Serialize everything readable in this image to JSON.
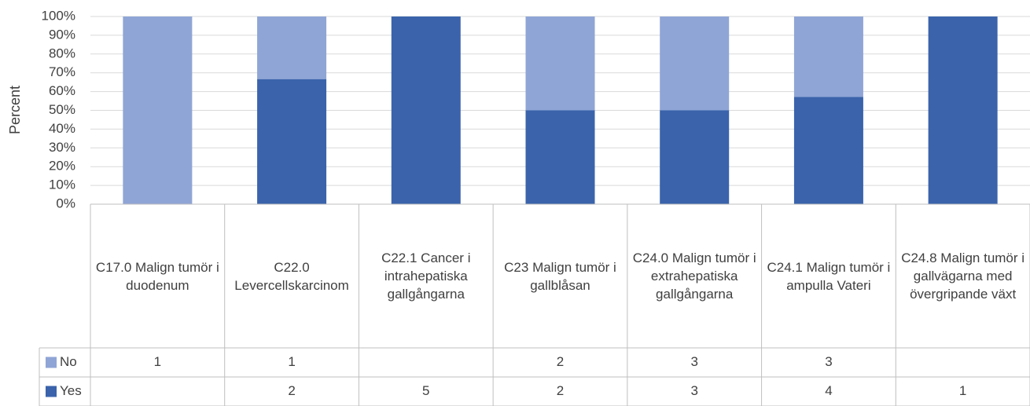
{
  "chart_data": {
    "type": "bar",
    "stacking": "percent",
    "y_label": "Percent",
    "categories": [
      "C17.0 Malign tumör i duodenum",
      "C22.0 Levercellskarcinom",
      "C22.1 Cancer i intrahepatiska gallgångarna",
      "C23 Malign tumör i gallblåsan",
      "C24.0 Malign tumör i extrahepatiska gallgångarna",
      "C24.1 Malign tumör i ampulla Vateri",
      "C24.8 Malign tumör i gallvägarna med övergripande växt"
    ],
    "series": [
      {
        "name": "No",
        "color": "#8fa5d6",
        "values": [
          1,
          1,
          null,
          2,
          3,
          3,
          null
        ]
      },
      {
        "name": "Yes",
        "color": "#3a63ab",
        "values": [
          null,
          2,
          5,
          2,
          3,
          4,
          1
        ]
      }
    ],
    "ylim": [
      0,
      100
    ],
    "yticks": [
      {
        "value": 0,
        "label": "0%"
      },
      {
        "value": 10,
        "label": "10%"
      },
      {
        "value": 20,
        "label": "20%"
      },
      {
        "value": 30,
        "label": "30%"
      },
      {
        "value": 40,
        "label": "40%"
      },
      {
        "value": 50,
        "label": "50%"
      },
      {
        "value": 60,
        "label": "60%"
      },
      {
        "value": 70,
        "label": "70%"
      },
      {
        "value": 80,
        "label": "80%"
      },
      {
        "value": 90,
        "label": "90%"
      },
      {
        "value": 100,
        "label": "100%"
      }
    ],
    "grid": true,
    "data_table": true
  }
}
